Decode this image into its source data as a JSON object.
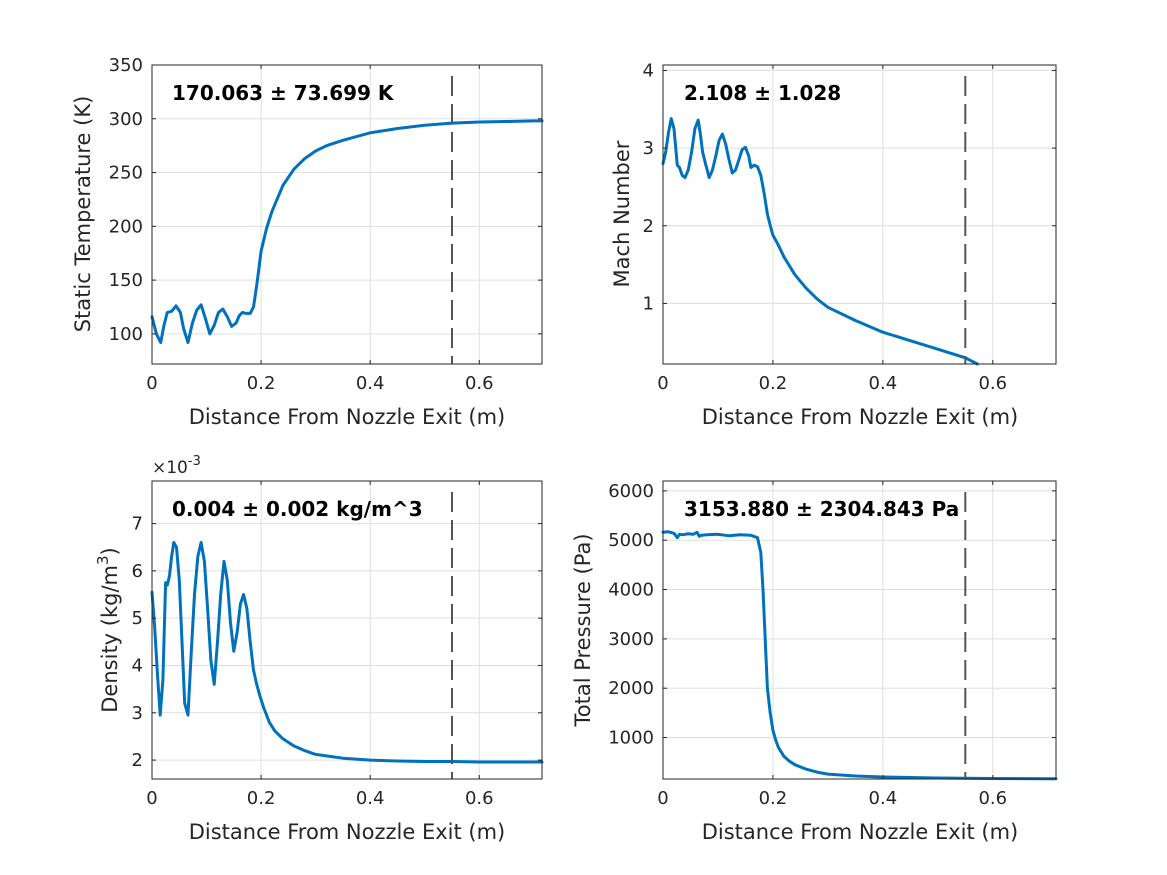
{
  "figure": {
    "background": "#ffffff",
    "axis_color": "#262626",
    "grid_color": "#dfdfdf",
    "line_color": "#0072bd",
    "marker_color": "#555555"
  },
  "chart_data": [
    {
      "type": "line",
      "xlabel": "Distance From Nozzle Exit (m)",
      "ylabel": "Static Temperature (K)",
      "annotation": "170.063 ± 73.699 K",
      "xlim": [
        0,
        0.715
      ],
      "ylim": [
        72,
        350
      ],
      "xticks": [
        0,
        0.2,
        0.4,
        0.6
      ],
      "xtick_labels": [
        "0",
        "0.2",
        "0.4",
        "0.6"
      ],
      "yticks": [
        100,
        150,
        200,
        250,
        300,
        350
      ],
      "ytick_labels": [
        "100",
        "150",
        "200",
        "250",
        "300",
        "350"
      ],
      "vline_x": 0.55,
      "grid": true,
      "x": [
        0,
        0.008,
        0.016,
        0.022,
        0.028,
        0.036,
        0.044,
        0.052,
        0.058,
        0.066,
        0.074,
        0.082,
        0.09,
        0.098,
        0.106,
        0.114,
        0.122,
        0.13,
        0.138,
        0.146,
        0.154,
        0.16,
        0.166,
        0.172,
        0.18,
        0.186,
        0.192,
        0.2,
        0.21,
        0.22,
        0.24,
        0.26,
        0.28,
        0.3,
        0.32,
        0.35,
        0.4,
        0.45,
        0.5,
        0.55,
        0.6,
        0.65,
        0.7,
        0.715
      ],
      "values": [
        116,
        100,
        92,
        108,
        120,
        121,
        126,
        120,
        105,
        92,
        110,
        122,
        127,
        114,
        100,
        108,
        120,
        123,
        116,
        107,
        110,
        117,
        120,
        119,
        119,
        125,
        145,
        177,
        198,
        214,
        238,
        253,
        263,
        270,
        275,
        280,
        287,
        291,
        294,
        296,
        297,
        297.5,
        298,
        298
      ]
    },
    {
      "type": "line",
      "xlabel": "Distance From Nozzle Exit (m)",
      "ylabel": "Mach Number",
      "annotation": "2.108 ± 1.028",
      "xlim": [
        0,
        0.715
      ],
      "ylim": [
        0.22,
        4.07
      ],
      "xticks": [
        0,
        0.2,
        0.4,
        0.6
      ],
      "xtick_labels": [
        "0",
        "0.2",
        "0.4",
        "0.6"
      ],
      "yticks": [
        1,
        2,
        3,
        4
      ],
      "ytick_labels": [
        "1",
        "2",
        "3",
        "4"
      ],
      "vline_x": 0.55,
      "grid": true,
      "x": [
        0,
        0.005,
        0.01,
        0.015,
        0.02,
        0.026,
        0.03,
        0.035,
        0.04,
        0.046,
        0.052,
        0.058,
        0.064,
        0.068,
        0.072,
        0.078,
        0.084,
        0.09,
        0.096,
        0.102,
        0.108,
        0.114,
        0.12,
        0.126,
        0.132,
        0.138,
        0.144,
        0.15,
        0.156,
        0.16,
        0.166,
        0.172,
        0.178,
        0.184,
        0.19,
        0.196,
        0.2,
        0.21,
        0.22,
        0.24,
        0.26,
        0.28,
        0.3,
        0.35,
        0.4,
        0.45,
        0.5,
        0.55,
        0.572
      ],
      "values": [
        2.8,
        2.95,
        3.2,
        3.38,
        3.25,
        2.78,
        2.75,
        2.65,
        2.62,
        2.72,
        2.95,
        3.25,
        3.36,
        3.18,
        2.95,
        2.78,
        2.62,
        2.72,
        2.9,
        3.1,
        3.18,
        3.05,
        2.85,
        2.68,
        2.72,
        2.85,
        2.98,
        3.01,
        2.9,
        2.75,
        2.78,
        2.76,
        2.65,
        2.42,
        2.15,
        1.98,
        1.88,
        1.75,
        1.6,
        1.37,
        1.2,
        1.06,
        0.95,
        0.78,
        0.63,
        0.52,
        0.41,
        0.3,
        0.22
      ]
    },
    {
      "type": "line",
      "xlabel": "Distance From Nozzle Exit (m)",
      "ylabel": "Density (kg/m^3)",
      "annotation": "0.004 ± 0.002 kg/m^3",
      "exponent_label": "×10^-3",
      "xlim": [
        0,
        0.715
      ],
      "ylim": [
        1.6,
        7.9
      ],
      "xticks": [
        0,
        0.2,
        0.4,
        0.6
      ],
      "xtick_labels": [
        "0",
        "0.2",
        "0.4",
        "0.6"
      ],
      "yticks": [
        2,
        3,
        4,
        5,
        6,
        7
      ],
      "ytick_labels": [
        "2",
        "3",
        "4",
        "5",
        "6",
        "7"
      ],
      "vline_x": 0.55,
      "grid": true,
      "x": [
        0,
        0.005,
        0.01,
        0.015,
        0.02,
        0.025,
        0.028,
        0.032,
        0.036,
        0.04,
        0.045,
        0.05,
        0.055,
        0.06,
        0.066,
        0.072,
        0.078,
        0.084,
        0.09,
        0.096,
        0.102,
        0.108,
        0.114,
        0.12,
        0.126,
        0.132,
        0.138,
        0.144,
        0.15,
        0.156,
        0.162,
        0.168,
        0.174,
        0.18,
        0.186,
        0.192,
        0.198,
        0.205,
        0.215,
        0.225,
        0.24,
        0.26,
        0.28,
        0.3,
        0.35,
        0.4,
        0.45,
        0.5,
        0.55,
        0.6,
        0.65,
        0.7,
        0.715
      ],
      "values": [
        5.55,
        4.8,
        3.8,
        2.95,
        3.7,
        5.75,
        5.7,
        5.9,
        6.3,
        6.6,
        6.5,
        5.8,
        4.5,
        3.2,
        2.95,
        4.3,
        5.5,
        6.3,
        6.6,
        6.2,
        5.2,
        4.1,
        3.6,
        4.5,
        5.5,
        6.2,
        5.8,
        4.9,
        4.3,
        4.7,
        5.3,
        5.5,
        5.2,
        4.5,
        3.9,
        3.6,
        3.35,
        3.1,
        2.8,
        2.62,
        2.45,
        2.3,
        2.2,
        2.12,
        2.04,
        2.0,
        1.98,
        1.97,
        1.97,
        1.96,
        1.96,
        1.96,
        1.96
      ]
    },
    {
      "type": "line",
      "xlabel": "Distance From Nozzle Exit (m)",
      "ylabel": "Total Pressure (Pa)",
      "annotation": "3153.880 ± 2304.843 Pa",
      "xlim": [
        0,
        0.715
      ],
      "ylim": [
        160,
        6200
      ],
      "xticks": [
        0,
        0.2,
        0.4,
        0.6
      ],
      "xtick_labels": [
        "0",
        "0.2",
        "0.4",
        "0.6"
      ],
      "yticks": [
        1000,
        2000,
        3000,
        4000,
        5000,
        6000
      ],
      "ytick_labels": [
        "1000",
        "2000",
        "3000",
        "4000",
        "5000",
        "6000"
      ],
      "vline_x": 0.55,
      "grid": true,
      "x": [
        0,
        0.01,
        0.02,
        0.026,
        0.03,
        0.036,
        0.045,
        0.055,
        0.062,
        0.066,
        0.07,
        0.08,
        0.1,
        0.12,
        0.14,
        0.16,
        0.172,
        0.178,
        0.182,
        0.186,
        0.19,
        0.195,
        0.2,
        0.205,
        0.21,
        0.22,
        0.23,
        0.24,
        0.26,
        0.28,
        0.3,
        0.35,
        0.4,
        0.45,
        0.5,
        0.55,
        0.6,
        0.65,
        0.7,
        0.715
      ],
      "values": [
        5160,
        5170,
        5140,
        5050,
        5120,
        5110,
        5130,
        5120,
        5160,
        5080,
        5100,
        5110,
        5120,
        5090,
        5110,
        5100,
        5050,
        4750,
        4000,
        3000,
        2000,
        1500,
        1150,
        950,
        800,
        620,
        520,
        450,
        360,
        300,
        260,
        220,
        200,
        190,
        180,
        175,
        170,
        168,
        165,
        165
      ]
    }
  ]
}
